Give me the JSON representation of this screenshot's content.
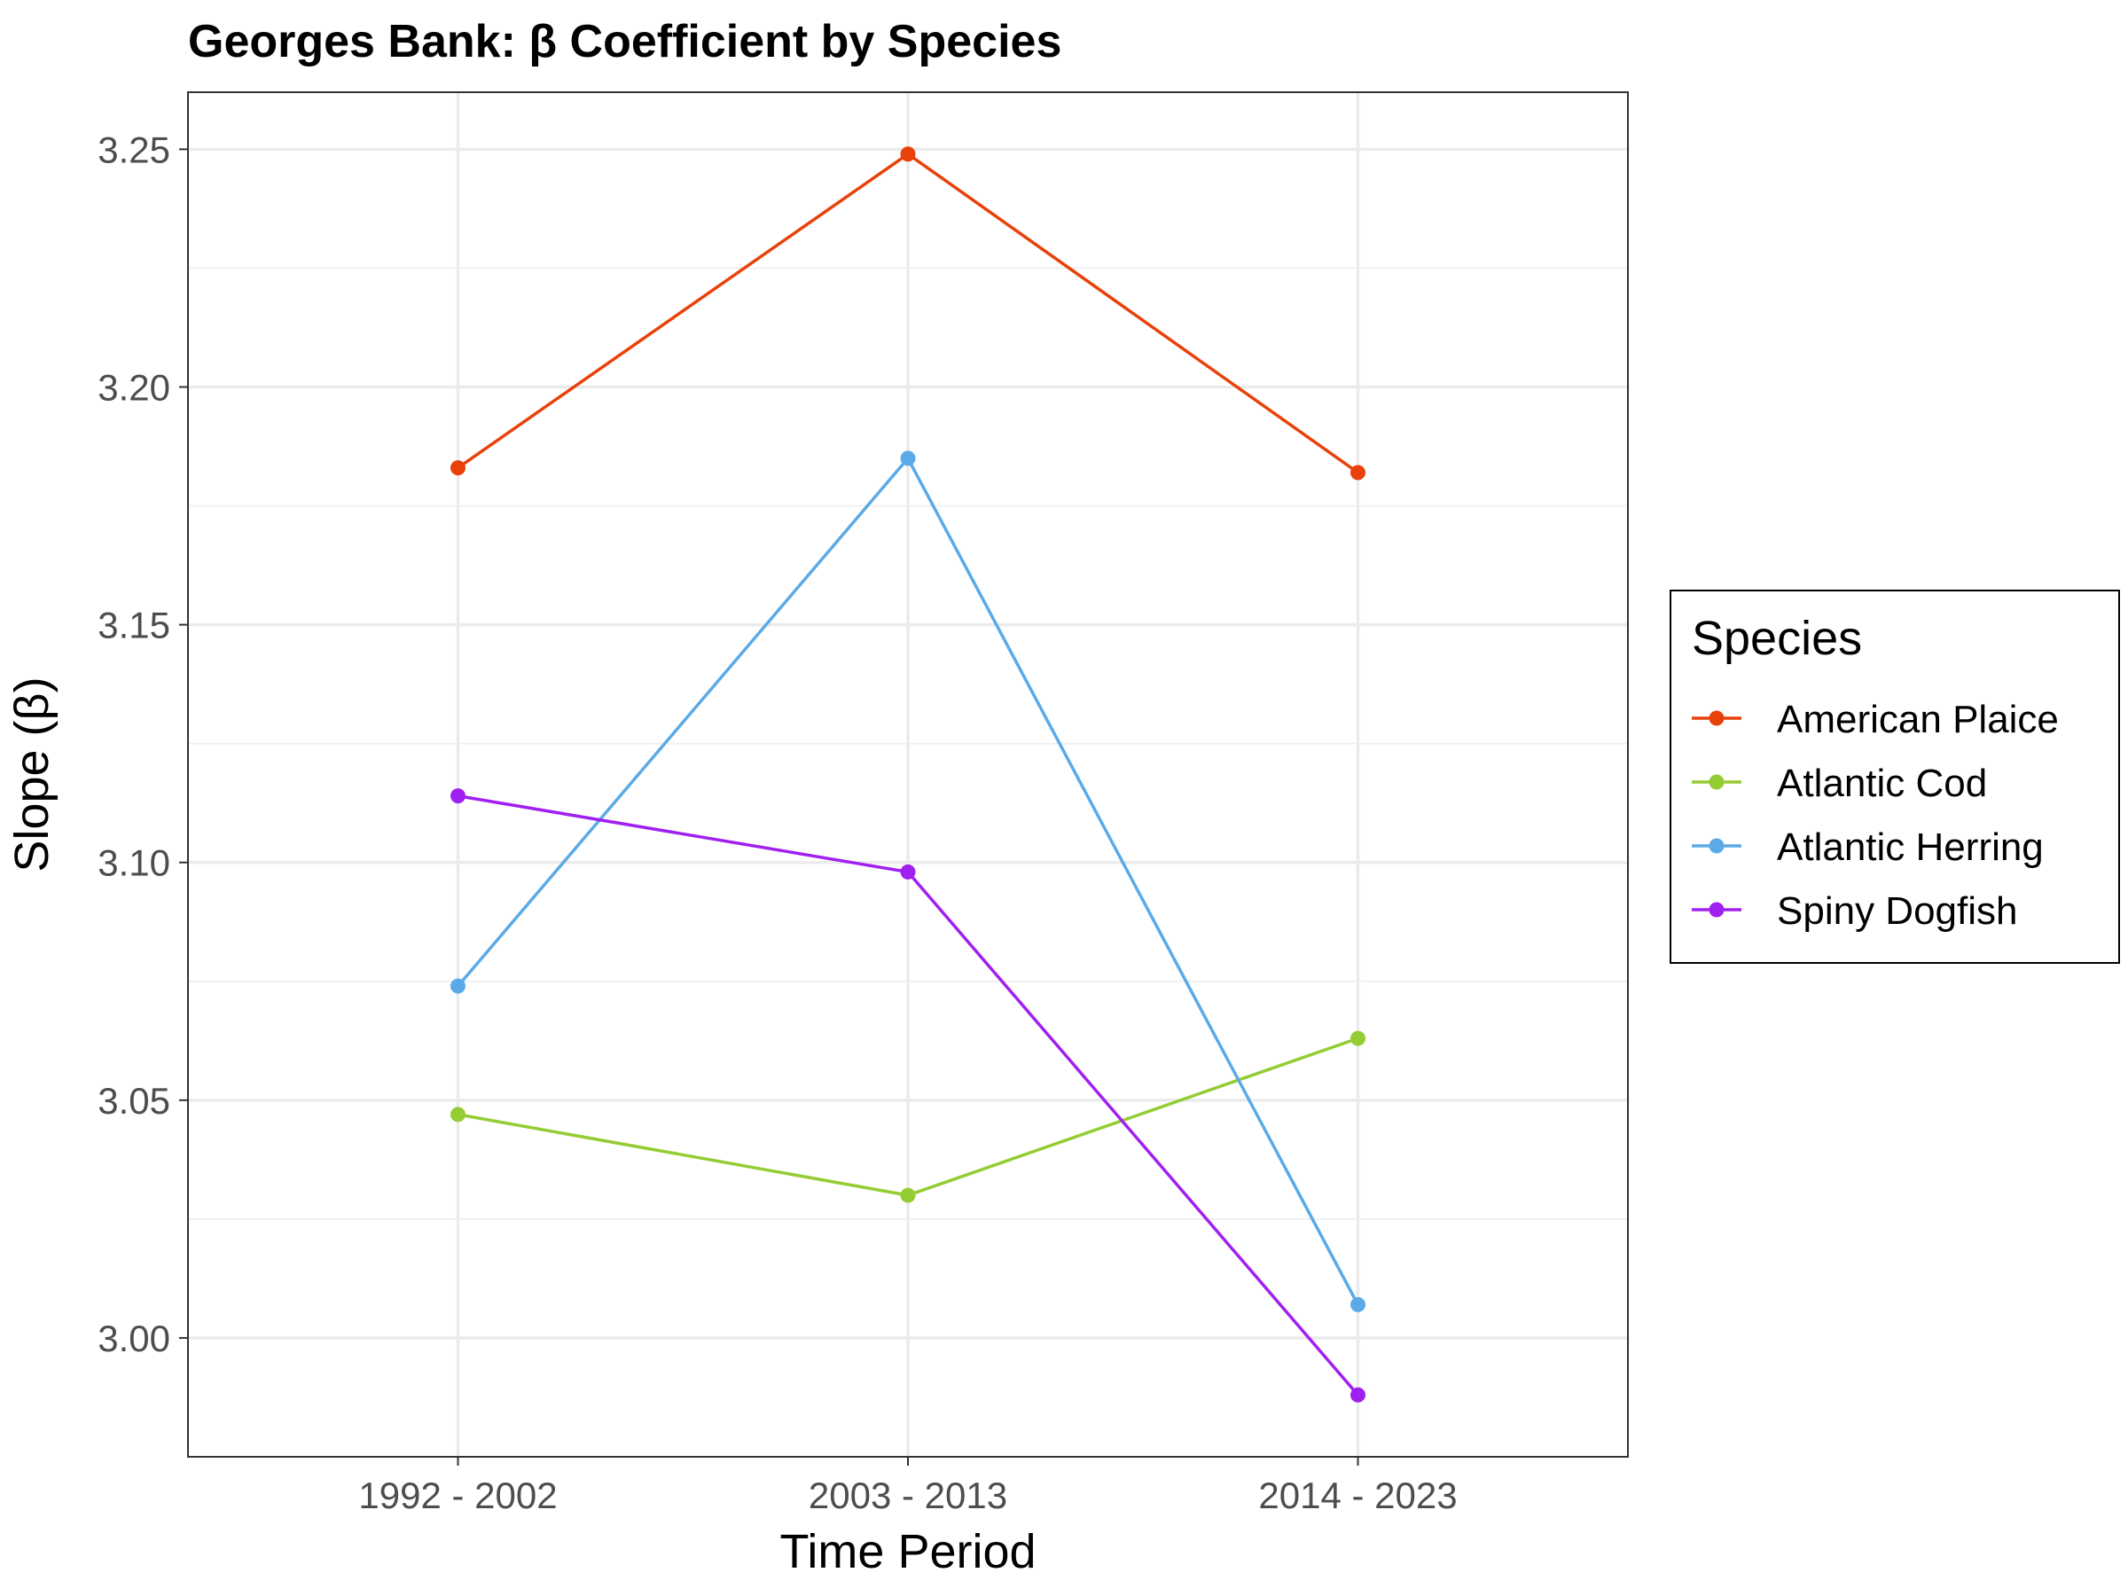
{
  "chart_data": {
    "type": "line",
    "title": "Georges Bank: β Coefficient by Species",
    "xlabel": "Time Period",
    "ylabel": "Slope (β)",
    "categories": [
      "1992 - 2002",
      "2003 - 2013",
      "2014 - 2023"
    ],
    "ylim": [
      2.975,
      3.262
    ],
    "yticks": [
      3.0,
      3.05,
      3.1,
      3.15,
      3.2,
      3.25
    ],
    "ytick_labels": [
      "3.00",
      "3.05",
      "3.10",
      "3.15",
      "3.20",
      "3.25"
    ],
    "grid": true,
    "legend": {
      "title": "Species",
      "position": "right"
    },
    "series": [
      {
        "name": "American Plaice",
        "color": "#e8410a",
        "values": [
          3.183,
          3.249,
          3.182
        ]
      },
      {
        "name": "Atlantic Cod",
        "color": "#94cc34",
        "values": [
          3.047,
          3.03,
          3.063
        ]
      },
      {
        "name": "Atlantic Herring",
        "color": "#5aaae8",
        "values": [
          3.074,
          3.185,
          3.007
        ]
      },
      {
        "name": "Spiny Dogfish",
        "color": "#a020f0",
        "values": [
          3.114,
          3.098,
          2.988
        ]
      }
    ]
  }
}
